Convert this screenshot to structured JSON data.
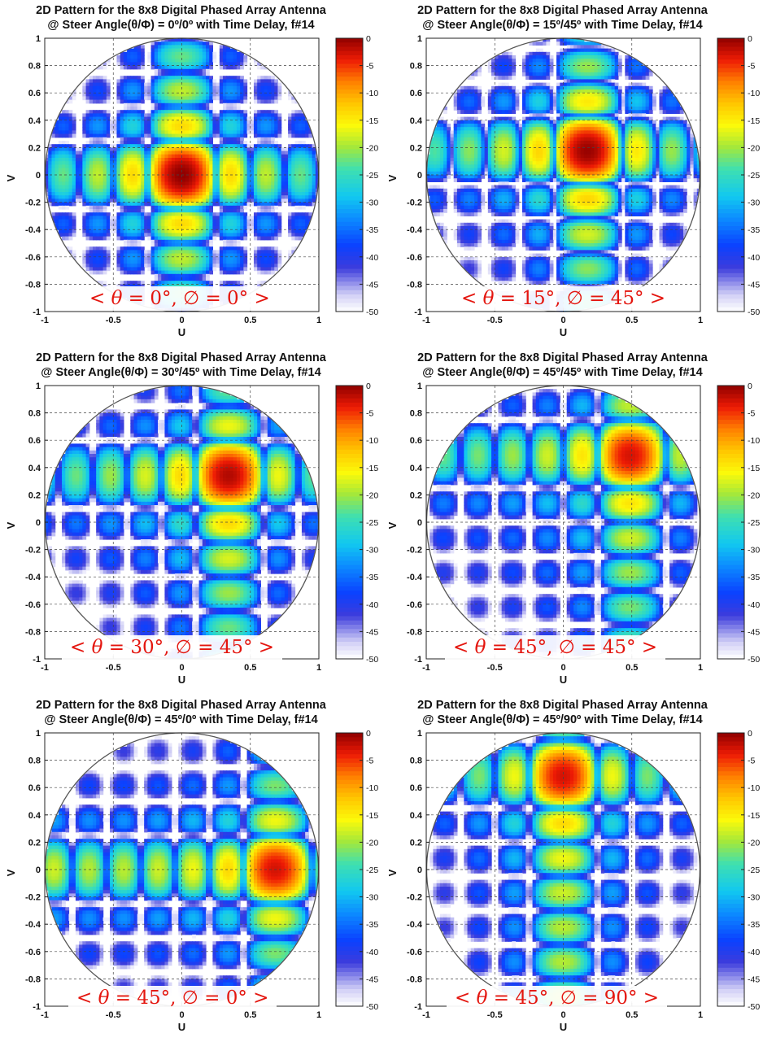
{
  "colormap_stops": [
    [
      0.0,
      "#ffffff"
    ],
    [
      0.06,
      "#d2d0f6"
    ],
    [
      0.16,
      "#3c3cdc"
    ],
    [
      0.24,
      "#0b41ff"
    ],
    [
      0.34,
      "#0c8cff"
    ],
    [
      0.42,
      "#11c8f0"
    ],
    [
      0.52,
      "#3fe0b0"
    ],
    [
      0.6,
      "#a2e83c"
    ],
    [
      0.68,
      "#fbfa0a"
    ],
    [
      0.76,
      "#ffc700"
    ],
    [
      0.84,
      "#ff7f00"
    ],
    [
      0.92,
      "#ee1b05"
    ],
    [
      1.0,
      "#8f0000"
    ]
  ],
  "chart_data": [
    {
      "type": "heatmap",
      "title": [
        "2D Pattern for the 8x8 Digital Phased Array Antenna",
        "@ Steer Angle(θ/Φ) = 0º/0º with Time Delay, f#14"
      ],
      "xlabel": "U",
      "ylabel": "V",
      "xlim": [
        -1,
        1
      ],
      "ylim": [
        -1,
        1
      ],
      "xticks": [
        -1,
        -0.5,
        0,
        0.5,
        1
      ],
      "xtick_labels": [
        "-1",
        "-0.5",
        "0",
        "0.5",
        "1"
      ],
      "yticks": [
        1,
        0.8,
        0.6,
        0.4,
        0.2,
        0,
        -0.2,
        -0.4,
        -0.6,
        -0.8,
        -1
      ],
      "ytick_labels": [
        "1",
        "0.8",
        "0.6",
        "0.4",
        "0.2",
        "0",
        "-0.2",
        "-0.4",
        "-0.6",
        "-0.8",
        "-1"
      ],
      "grid": true,
      "colorbar": {
        "ticks": [
          0,
          -5,
          -10,
          -15,
          -20,
          -25,
          -30,
          -35,
          -40,
          -45,
          -50
        ],
        "labels": [
          "0",
          "-5",
          "-10",
          "-15",
          "-20",
          "-25",
          "-30",
          "-35",
          "-40",
          "-45",
          "-50"
        ],
        "range": [
          -50,
          0
        ]
      },
      "steer": {
        "u": 0,
        "v": 0
      },
      "annotation": {
        "pre": "< ",
        "theta": "θ",
        "theta_val": " = 0°,  ",
        "phi": "∅",
        "phi_val": " = 0°",
        "post": " >"
      }
    },
    {
      "type": "heatmap",
      "title": [
        "2D Pattern for the 8x8 Digital Phased Array Antenna",
        "@ Steer Angle(θ/Φ) = 15º/45º with Time Delay, f#14"
      ],
      "xlabel": "U",
      "ylabel": "V",
      "xlim": [
        -1,
        1
      ],
      "ylim": [
        -1,
        1
      ],
      "xticks": [
        -1,
        -0.5,
        0,
        0.5,
        1
      ],
      "xtick_labels": [
        "-1",
        "-0.5",
        "0",
        "0.5",
        "1"
      ],
      "yticks": [
        1,
        0.8,
        0.6,
        0.4,
        0.2,
        0,
        -0.2,
        -0.4,
        -0.6,
        -0.8,
        -1
      ],
      "ytick_labels": [
        "1",
        "0.8",
        "0.6",
        "0.4",
        "0.2",
        "0",
        "-0.2",
        "-0.4",
        "-0.6",
        "-0.8",
        "-1"
      ],
      "grid": true,
      "colorbar": {
        "ticks": [
          0,
          -5,
          -10,
          -15,
          -20,
          -25,
          -30,
          -35,
          -40,
          -45,
          -50
        ],
        "labels": [
          "0",
          "-5",
          "-10",
          "-15",
          "-20",
          "-25",
          "-30",
          "-35",
          "-40",
          "-45",
          "-50"
        ],
        "range": [
          -50,
          0
        ]
      },
      "steer": {
        "u": 0.18,
        "v": 0.18
      },
      "annotation": {
        "pre": "< ",
        "theta": "θ",
        "theta_val": " = 15°,  ",
        "phi": "∅",
        "phi_val": " = 45°",
        "post": " >"
      }
    },
    {
      "type": "heatmap",
      "title": [
        "2D Pattern for the 8x8 Digital Phased Array Antenna",
        "@ Steer Angle(θ/Φ) = 30º/45º with Time Delay, f#14"
      ],
      "xlabel": "U",
      "ylabel": "V",
      "xlim": [
        -1,
        1
      ],
      "ylim": [
        -1,
        1
      ],
      "xticks": [
        -1,
        -0.5,
        0,
        0.5,
        1
      ],
      "xtick_labels": [
        "-1",
        "-0.5",
        "0",
        "0.5",
        "1"
      ],
      "yticks": [
        1,
        0.8,
        0.6,
        0.4,
        0.2,
        0,
        -0.2,
        -0.4,
        -0.6,
        -0.8,
        -1
      ],
      "ytick_labels": [
        "1",
        "0.8",
        "0.6",
        "0.4",
        "0.2",
        "0",
        "-0.2",
        "-0.4",
        "-0.6",
        "-0.8",
        "-1"
      ],
      "grid": true,
      "colorbar": {
        "ticks": [
          0,
          -5,
          -10,
          -15,
          -20,
          -25,
          -30,
          -35,
          -40,
          -45,
          -50
        ],
        "labels": [
          "0",
          "-5",
          "-10",
          "-15",
          "-20",
          "-25",
          "-30",
          "-35",
          "-40",
          "-45",
          "-50"
        ],
        "range": [
          -50,
          0
        ]
      },
      "steer": {
        "u": 0.35,
        "v": 0.35
      },
      "annotation": {
        "pre": "< ",
        "theta": "θ",
        "theta_val": " = 30°,  ",
        "phi": "∅",
        "phi_val": " = 45°",
        "post": " >"
      }
    },
    {
      "type": "heatmap",
      "title": [
        "2D Pattern for the 8x8 Digital Phased Array Antenna",
        "@ Steer Angle(θ/Φ) = 45º/45º with Time Delay, f#14"
      ],
      "xlabel": "U",
      "ylabel": "V",
      "xlim": [
        -1,
        1
      ],
      "ylim": [
        -1,
        1
      ],
      "xticks": [
        -1,
        -0.5,
        0,
        0.5,
        1
      ],
      "xtick_labels": [
        "-1",
        "-0.5",
        "0",
        "0.5",
        "1"
      ],
      "yticks": [
        1,
        0.8,
        0.6,
        0.4,
        0.2,
        0,
        -0.2,
        -0.4,
        -0.6,
        -0.8,
        -1
      ],
      "ytick_labels": [
        "1",
        "0.8",
        "0.6",
        "0.4",
        "0.2",
        "0",
        "-0.2",
        "-0.4",
        "-0.6",
        "-0.8",
        "-1"
      ],
      "grid": true,
      "colorbar": {
        "ticks": [
          0,
          -5,
          -10,
          -15,
          -20,
          -25,
          -30,
          -35,
          -40,
          -45,
          -50
        ],
        "labels": [
          "0",
          "-5",
          "-10",
          "-15",
          "-20",
          "-25",
          "-30",
          "-35",
          "-40",
          "-45",
          "-50"
        ],
        "range": [
          -50,
          0
        ]
      },
      "steer": {
        "u": 0.5,
        "v": 0.5
      },
      "annotation": {
        "pre": "< ",
        "theta": "θ",
        "theta_val": " = 45°,  ",
        "phi": "∅",
        "phi_val": " = 45°",
        "post": " >"
      }
    },
    {
      "type": "heatmap",
      "title": [
        "2D Pattern for the 8x8 Digital Phased Array Antenna",
        "@ Steer Angle(θ/Φ) = 45º/0º with Time Delay, f#14"
      ],
      "xlabel": "U",
      "ylabel": "V",
      "xlim": [
        -1,
        1
      ],
      "ylim": [
        -1,
        1
      ],
      "xticks": [
        -1,
        -0.5,
        0,
        0.5,
        1
      ],
      "xtick_labels": [
        "-1",
        "-0.5",
        "0",
        "0.5",
        "1"
      ],
      "yticks": [
        1,
        0.8,
        0.6,
        0.4,
        0.2,
        0,
        -0.2,
        -0.4,
        -0.6,
        -0.8,
        -1
      ],
      "ytick_labels": [
        "1",
        "0.8",
        "0.6",
        "0.4",
        "0.2",
        "0",
        "-0.2",
        "-0.4",
        "-0.6",
        "-0.8",
        "-1"
      ],
      "grid": true,
      "colorbar": {
        "ticks": [
          0,
          -5,
          -10,
          -15,
          -20,
          -25,
          -30,
          -35,
          -40,
          -45,
          -50
        ],
        "labels": [
          "0",
          "-5",
          "-10",
          "-15",
          "-20",
          "-25",
          "-30",
          "-35",
          "-40",
          "-45",
          "-50"
        ],
        "range": [
          -50,
          0
        ]
      },
      "steer": {
        "u": 0.7,
        "v": 0
      },
      "annotation": {
        "pre": "< ",
        "theta": "θ",
        "theta_val": " = 45°,  ",
        "phi": "∅",
        "phi_val": " = 0°",
        "post": " >"
      }
    },
    {
      "type": "heatmap",
      "title": [
        "2D Pattern for the 8x8 Digital Phased Array Antenna",
        "@ Steer Angle(θ/Φ) = 45º/90º with Time Delay, f#14"
      ],
      "xlabel": "U",
      "ylabel": "V",
      "xlim": [
        -1,
        1
      ],
      "ylim": [
        -1,
        1
      ],
      "xticks": [
        -1,
        -0.5,
        0,
        0.5,
        1
      ],
      "xtick_labels": [
        "-1",
        "-0.5",
        "0",
        "0.5",
        "1"
      ],
      "yticks": [
        1,
        0.8,
        0.6,
        0.4,
        0.2,
        0,
        -0.2,
        -0.4,
        -0.6,
        -0.8,
        -1
      ],
      "ytick_labels": [
        "1",
        "0.8",
        "0.6",
        "0.4",
        "0.2",
        "0",
        "-0.2",
        "-0.4",
        "-0.6",
        "-0.8",
        "-1"
      ],
      "grid": true,
      "colorbar": {
        "ticks": [
          0,
          -5,
          -10,
          -15,
          -20,
          -25,
          -30,
          -35,
          -40,
          -45,
          -50
        ],
        "labels": [
          "0",
          "-5",
          "-10",
          "-15",
          "-20",
          "-25",
          "-30",
          "-35",
          "-40",
          "-45",
          "-50"
        ],
        "range": [
          -50,
          0
        ]
      },
      "steer": {
        "u": 0,
        "v": 0.7
      },
      "annotation": {
        "pre": "< ",
        "theta": "θ",
        "theta_val": " = 45°,  ",
        "phi": "∅",
        "phi_val": " = 90°",
        "post": " >"
      }
    }
  ]
}
